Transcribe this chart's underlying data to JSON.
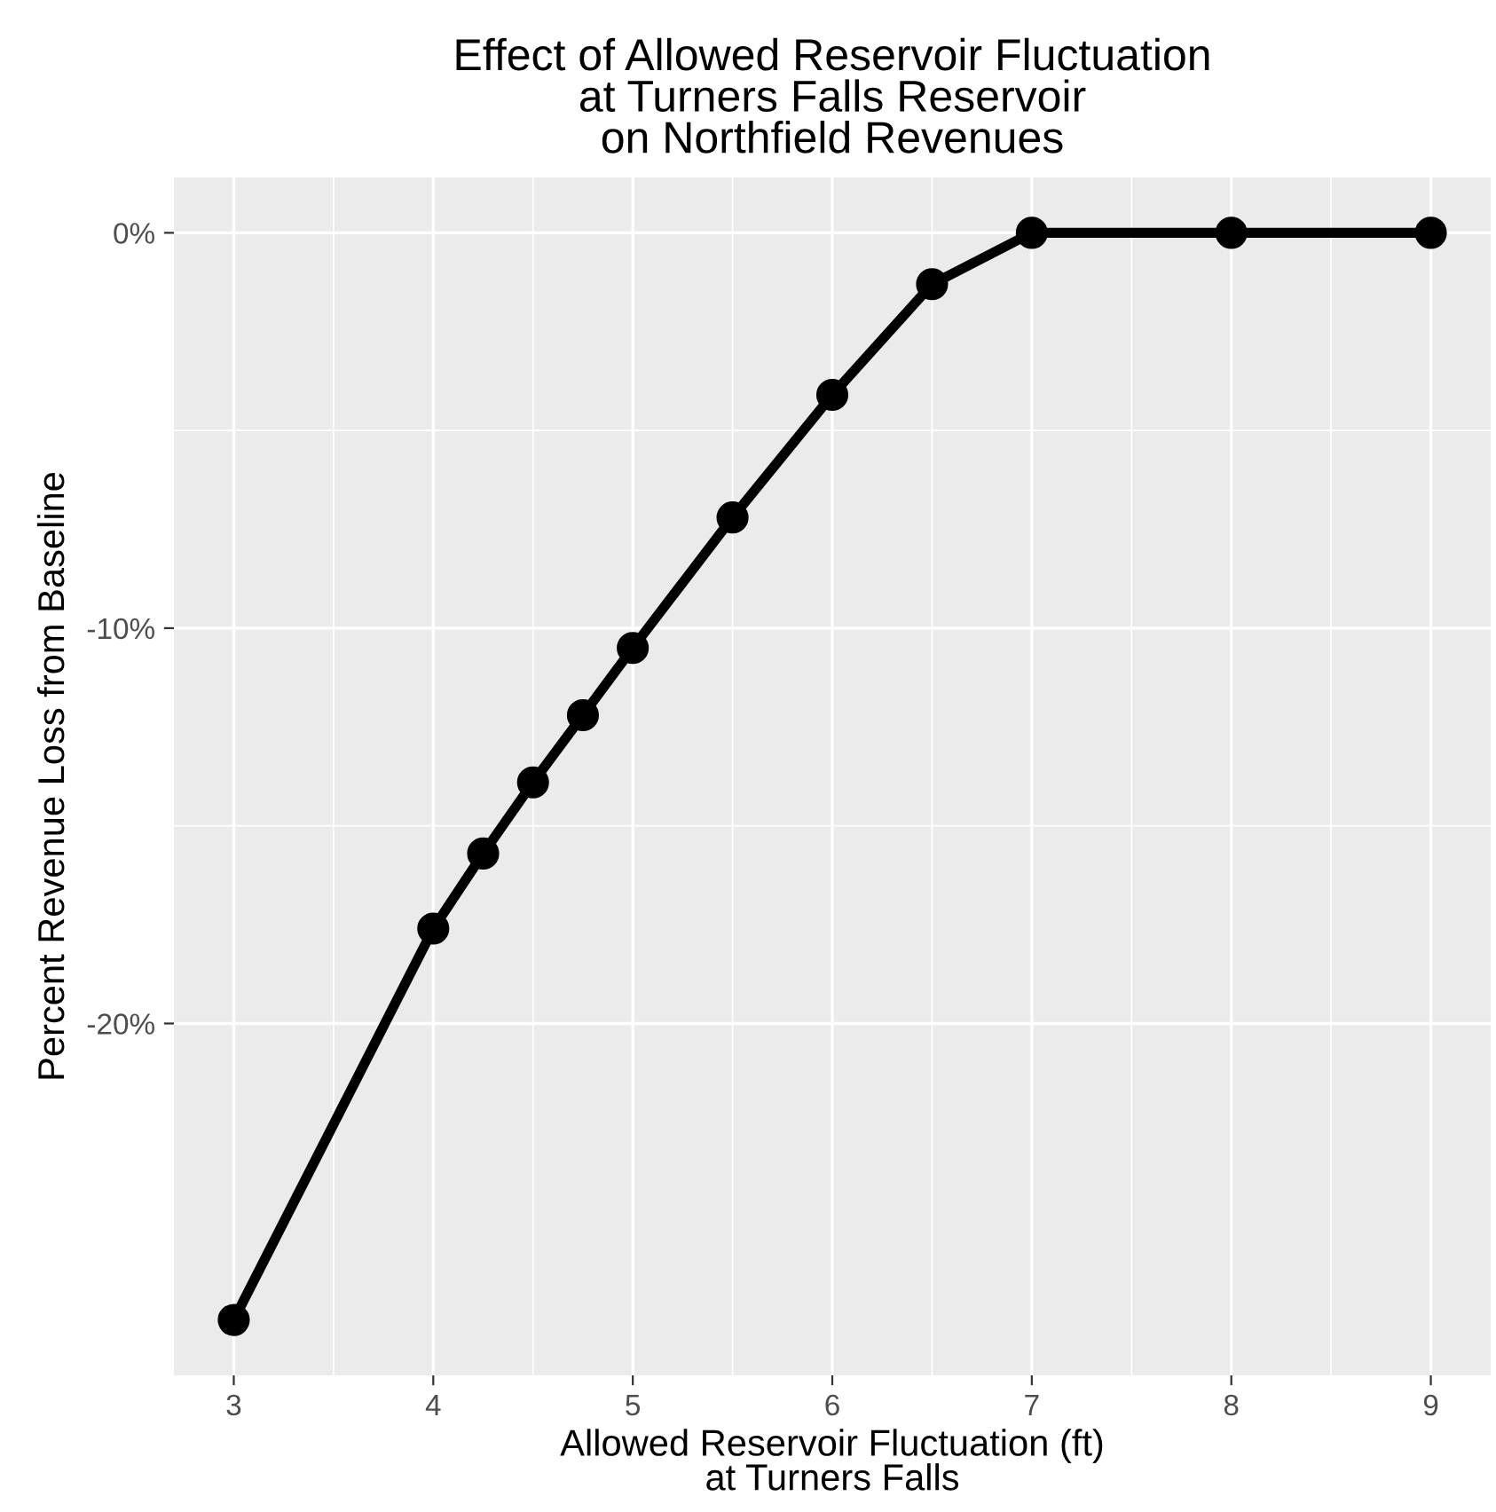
{
  "chart_data": {
    "type": "line",
    "title": "Effect of Allowed Reservoir Fluctuation\nat Turners Falls Reservoir\non Northfield Revenues",
    "xlabel": "Allowed Reservoir Fluctuation (ft)\nat Turners Falls",
    "ylabel": "Percent Revenue Loss from Baseline",
    "series": [
      {
        "color": "#000000",
        "x": [
          3,
          4,
          4.25,
          4.5,
          4.75,
          5,
          5.5,
          6,
          6.5,
          7,
          8,
          9
        ],
        "values": [
          -27.5,
          -17.6,
          -15.7,
          -13.9,
          -12.2,
          -10.5,
          -7.2,
          -4.1,
          -1.3,
          0,
          0,
          0
        ]
      }
    ],
    "xlim": [
      2.7,
      9.3
    ],
    "ylim": [
      -28.9,
      1.4
    ],
    "xticks": [
      3,
      4,
      5,
      6,
      7,
      8,
      9
    ],
    "yticks": [
      {
        "value": 0,
        "label": "0%"
      },
      {
        "value": -10,
        "label": "-10%"
      },
      {
        "value": -20,
        "label": "-20%"
      }
    ],
    "grid": true,
    "marker": "circle",
    "line_style": "solid"
  }
}
